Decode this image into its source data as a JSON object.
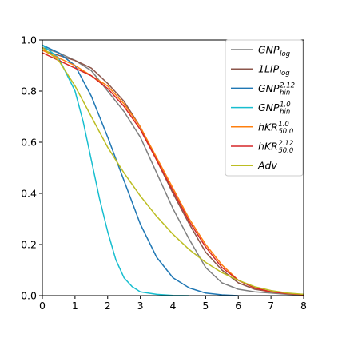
{
  "chart_data": {
    "type": "line",
    "title": "",
    "xlabel": "",
    "ylabel": "",
    "xlim": [
      0,
      8
    ],
    "ylim": [
      0,
      1.0
    ],
    "xticks": [
      "0",
      "1",
      "2",
      "3",
      "4",
      "5",
      "6",
      "7",
      "8"
    ],
    "yticks": [
      "0.0",
      "0.2",
      "0.4",
      "0.6",
      "0.8",
      "1.0"
    ],
    "grid": false,
    "legend_position": "top-right",
    "series": [
      {
        "name": "GNP_log",
        "label_main": "GNP",
        "label_sub": "log",
        "label_sup": "",
        "color": "#7f7f7f",
        "x": [
          0,
          0.5,
          1.0,
          1.5,
          2.0,
          2.5,
          3.0,
          3.5,
          4.0,
          4.5,
          5.0,
          5.5,
          6.0,
          6.5,
          7.0,
          7.5,
          8.0
        ],
        "y": [
          0.97,
          0.95,
          0.92,
          0.88,
          0.8,
          0.72,
          0.62,
          0.48,
          0.34,
          0.22,
          0.11,
          0.05,
          0.025,
          0.015,
          0.01,
          0.005,
          0.002
        ]
      },
      {
        "name": "1LIP_log",
        "label_main": "1LIP",
        "label_sub": "log",
        "label_sup": "",
        "color": "#8c564b",
        "x": [
          0,
          0.5,
          1.0,
          1.5,
          2.0,
          2.5,
          3.0,
          3.5,
          4.0,
          4.5,
          5.0,
          5.5,
          6.0,
          6.5,
          7.0,
          7.5,
          8.0
        ],
        "y": [
          0.96,
          0.94,
          0.92,
          0.89,
          0.83,
          0.76,
          0.66,
          0.53,
          0.4,
          0.28,
          0.17,
          0.1,
          0.05,
          0.025,
          0.015,
          0.008,
          0.004
        ]
      },
      {
        "name": "GNP_hin^2.12",
        "label_main": "GNP",
        "label_sub": "hin",
        "label_sup": "2.12",
        "color": "#1f77b4",
        "x": [
          0,
          0.5,
          1.0,
          1.5,
          2.0,
          2.5,
          3.0,
          3.5,
          4.0,
          4.5,
          5.0,
          5.5,
          6.0
        ],
        "y": [
          0.98,
          0.95,
          0.9,
          0.78,
          0.62,
          0.45,
          0.28,
          0.15,
          0.07,
          0.03,
          0.01,
          0.003,
          0.0
        ]
      },
      {
        "name": "GNP_hin^1.0",
        "label_main": "GNP",
        "label_sub": "hin",
        "label_sup": "1.0",
        "color": "#17becf",
        "x": [
          0,
          0.5,
          1.0,
          1.25,
          1.5,
          1.75,
          2.0,
          2.25,
          2.5,
          2.75,
          3.0,
          3.5,
          4.0,
          4.5
        ],
        "y": [
          0.98,
          0.93,
          0.8,
          0.68,
          0.53,
          0.38,
          0.25,
          0.14,
          0.07,
          0.035,
          0.015,
          0.005,
          0.001,
          0.0
        ]
      },
      {
        "name": "hKR_50.0^1.0",
        "label_main": "hKR",
        "label_sub": "50.0",
        "label_sup": "1.0",
        "color": "#ff7f0e",
        "x": [
          0,
          0.5,
          1.0,
          1.5,
          2.0,
          2.5,
          3.0,
          3.5,
          4.0,
          4.5,
          5.0,
          5.5,
          6.0,
          6.5,
          7.0,
          7.5,
          8.0
        ],
        "y": [
          0.96,
          0.93,
          0.9,
          0.86,
          0.82,
          0.75,
          0.66,
          0.54,
          0.42,
          0.3,
          0.2,
          0.12,
          0.06,
          0.03,
          0.015,
          0.008,
          0.004
        ]
      },
      {
        "name": "hKR_50.0^2.12",
        "label_main": "hKR",
        "label_sub": "50.0",
        "label_sup": "2.12",
        "color": "#d62728",
        "x": [
          0,
          0.5,
          1.0,
          1.5,
          2.0,
          2.5,
          3.0,
          3.5,
          4.0,
          4.5,
          5.0,
          5.5,
          6.0,
          6.5,
          7.0,
          7.5,
          8.0
        ],
        "y": [
          0.95,
          0.92,
          0.89,
          0.86,
          0.81,
          0.74,
          0.65,
          0.53,
          0.41,
          0.29,
          0.19,
          0.11,
          0.06,
          0.03,
          0.015,
          0.008,
          0.004
        ]
      },
      {
        "name": "Adv",
        "label_main": "Adv",
        "label_sub": "",
        "label_sup": "",
        "color": "#bcbd22",
        "x": [
          0,
          0.5,
          1.0,
          1.5,
          2.0,
          2.5,
          3.0,
          3.5,
          4.0,
          4.5,
          5.0,
          5.5,
          6.0,
          6.5,
          7.0,
          7.5,
          8.0
        ],
        "y": [
          0.97,
          0.92,
          0.82,
          0.7,
          0.58,
          0.48,
          0.39,
          0.31,
          0.24,
          0.18,
          0.13,
          0.09,
          0.06,
          0.035,
          0.02,
          0.01,
          0.005
        ]
      }
    ]
  }
}
